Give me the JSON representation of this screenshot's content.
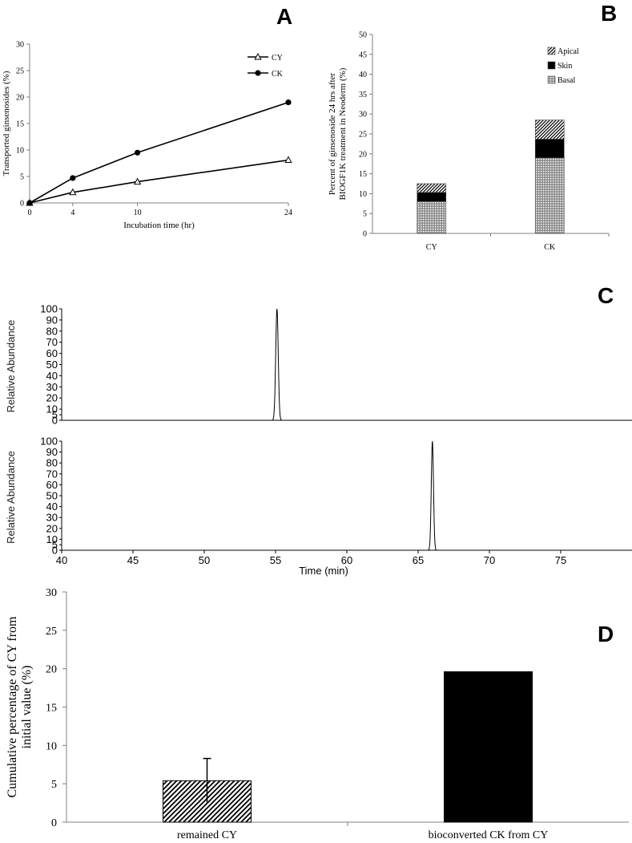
{
  "colors": {
    "ink": "#000000",
    "background": "#ffffff",
    "axis": "#808080"
  },
  "panel_letters": {
    "a": "A",
    "b": "B",
    "c": "C",
    "d": "D"
  },
  "chart_data": [
    {
      "panel": "A",
      "type": "line",
      "title": "",
      "xlabel": "Incubation time (hr)",
      "ylabel": "Transported ginsenosides (%)",
      "xlim": [
        0,
        24
      ],
      "ylim": [
        0,
        30
      ],
      "xticks": [
        "0",
        "4",
        "10",
        "24"
      ],
      "yticks": [
        "0",
        "5",
        "10",
        "15",
        "20",
        "25",
        "30"
      ],
      "series": [
        {
          "name": "CY",
          "marker": "triangle-open",
          "x": [
            0,
            4,
            10,
            24
          ],
          "y": [
            0,
            2,
            4,
            8.1
          ]
        },
        {
          "name": "CK",
          "marker": "circle-filled",
          "x": [
            0,
            4,
            10,
            24
          ],
          "y": [
            0,
            4.7,
            9.5,
            19
          ]
        }
      ],
      "legend": "top-right"
    },
    {
      "panel": "B",
      "type": "bar",
      "stacked": true,
      "title": "",
      "xlabel": "",
      "ylabel_lines": [
        "Percent  of ginsenoside 24 hrs after",
        "BIOGF1K treatment in Neoderm (%)"
      ],
      "categories": [
        "CY",
        "CK"
      ],
      "ylim": [
        0,
        50
      ],
      "yticks": [
        "0",
        "5",
        "10",
        "15",
        "20",
        "25",
        "30",
        "35",
        "40",
        "45",
        "50"
      ],
      "series": [
        {
          "name": "Basal",
          "pattern": "dots",
          "values": [
            8,
            19
          ]
        },
        {
          "name": "Skin",
          "pattern": "solid",
          "values": [
            2.3,
            4.7
          ]
        },
        {
          "name": "Apical",
          "pattern": "diagonal",
          "values": [
            2.2,
            4.8
          ]
        }
      ],
      "legend_order": [
        "Apical",
        "Skin",
        "Basal"
      ],
      "legend": "top-right"
    },
    {
      "panel": "C",
      "type": "line",
      "title": "",
      "xlabel": "Time (min)",
      "xlim": [
        40,
        80
      ],
      "xticks": [
        "40",
        "45",
        "50",
        "55",
        "60",
        "65",
        "70",
        "75"
      ],
      "subplots": [
        {
          "ylabel": "Relative  Abundance",
          "ylim": [
            0,
            100
          ],
          "yticks": [
            "0",
            "5",
            "10",
            "20",
            "30",
            "40",
            "50",
            "60",
            "70",
            "80",
            "90",
            "100"
          ],
          "peak": {
            "x": 55.1,
            "height": 100,
            "width": 0.4
          }
        },
        {
          "ylabel": "Relative  Abundance",
          "ylim": [
            0,
            100
          ],
          "yticks": [
            "0",
            "5",
            "10",
            "20",
            "30",
            "40",
            "50",
            "60",
            "70",
            "80",
            "90",
            "100"
          ],
          "peak": {
            "x": 66,
            "height": 100,
            "width": 0.35
          }
        }
      ]
    },
    {
      "panel": "D",
      "type": "bar",
      "title": "",
      "xlabel": "",
      "ylabel_lines": [
        "Cumulative percentage of CY from",
        "initial value (%)"
      ],
      "categories": [
        "remained CY",
        "bioconverted CK from CY"
      ],
      "values": [
        5.4,
        19.6
      ],
      "errors": [
        2.9,
        0
      ],
      "patterns": [
        "diagonal",
        "solid"
      ],
      "ylim": [
        0,
        30
      ],
      "yticks": [
        "0",
        "5",
        "10",
        "15",
        "20",
        "25",
        "30"
      ]
    }
  ]
}
